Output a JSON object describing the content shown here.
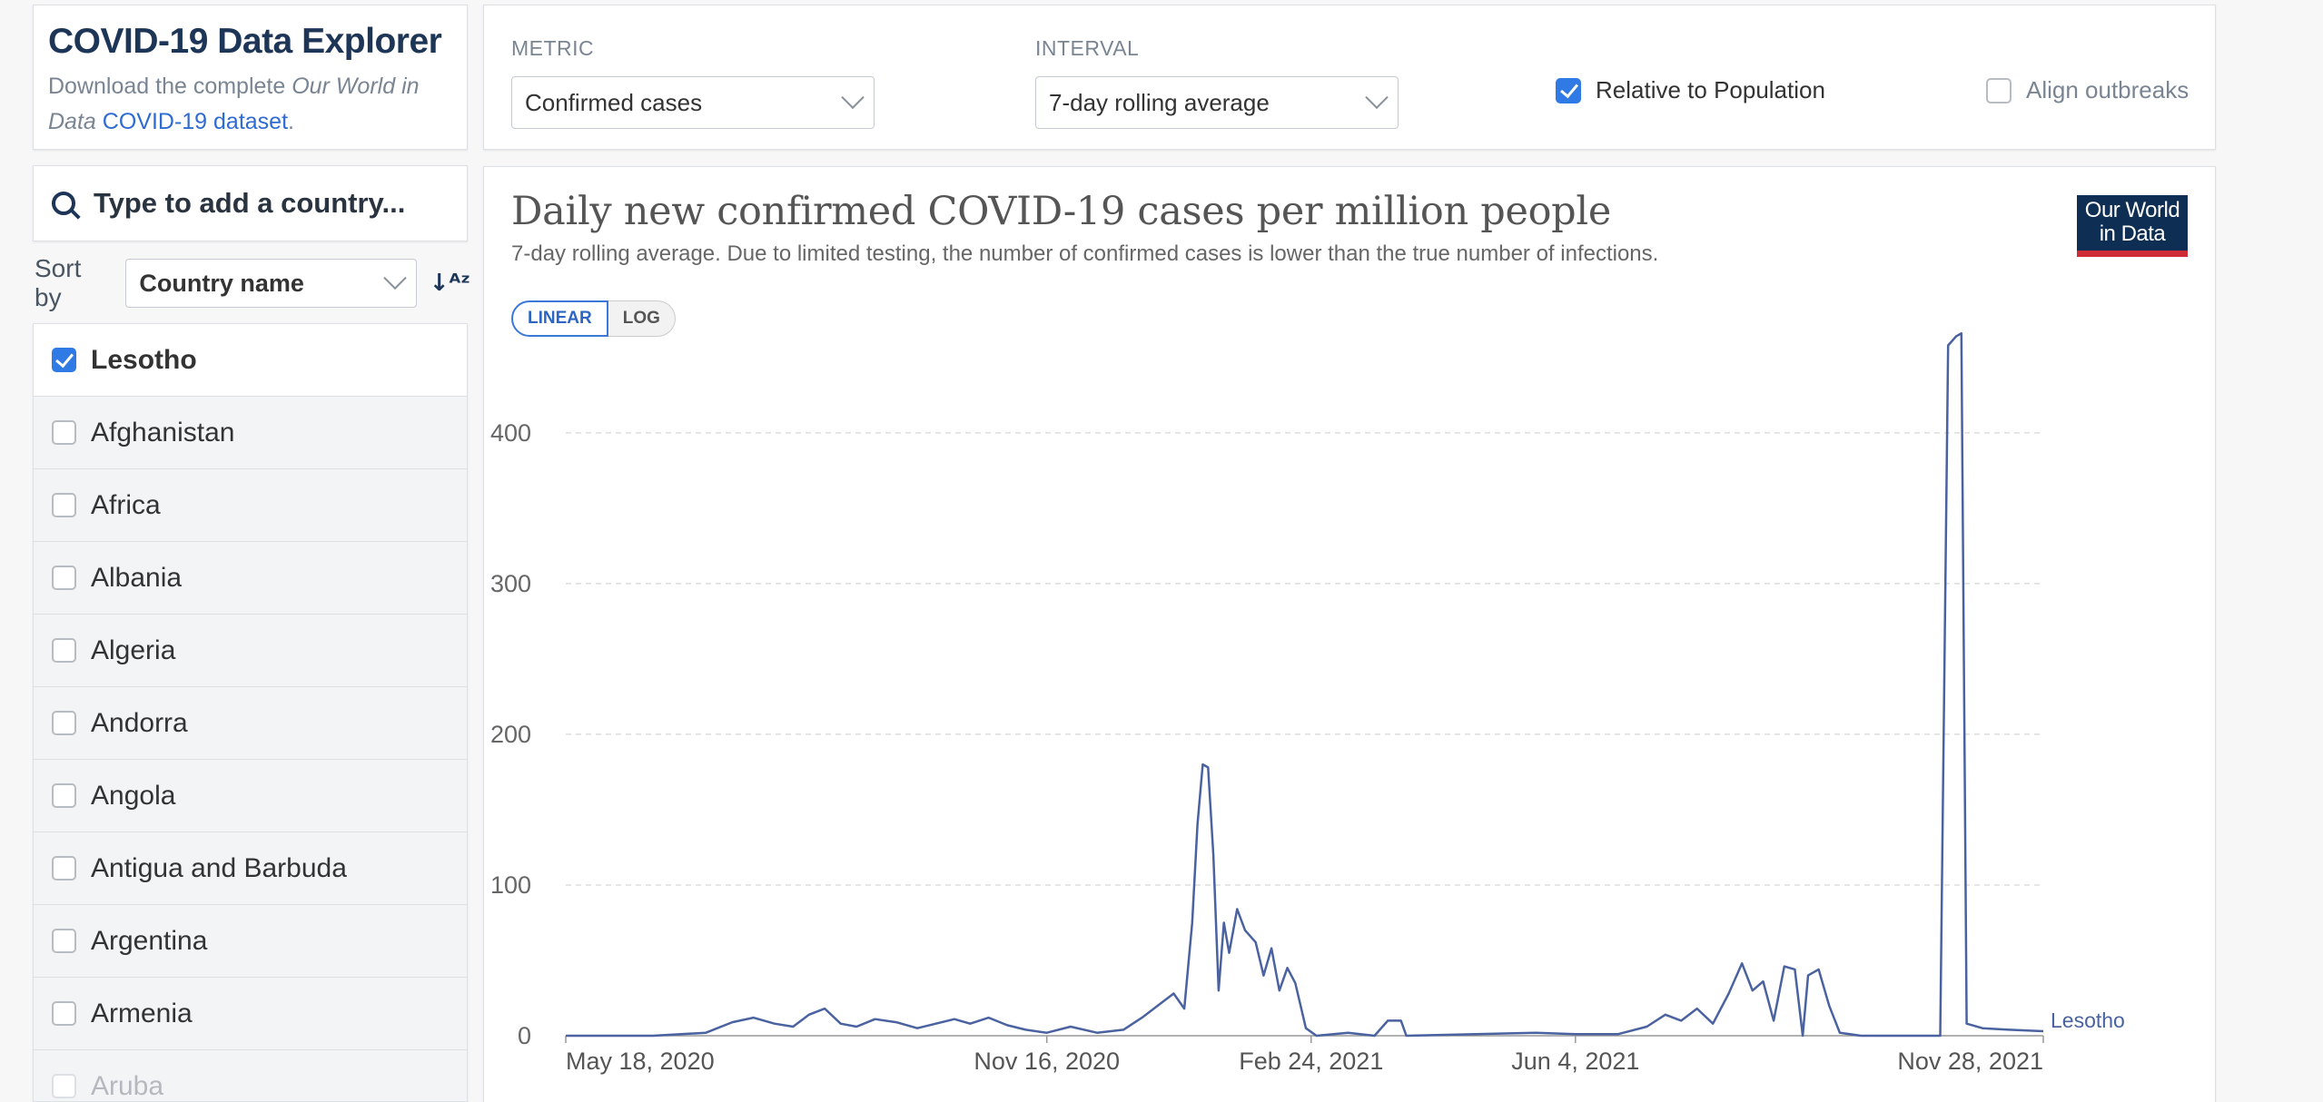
{
  "header": {
    "title": "COVID-19 Data Explorer",
    "download_prefix": "Download the complete ",
    "download_italic": "Our World in Data",
    "download_link": "COVID-19 dataset",
    "download_suffix": "."
  },
  "controls": {
    "metric_label": "METRIC",
    "metric_value": "Confirmed cases",
    "interval_label": "INTERVAL",
    "interval_value": "7-day rolling average",
    "relative_label": "Relative to Population",
    "relative_checked": true,
    "align_label": "Align outbreaks",
    "align_checked": false
  },
  "search": {
    "placeholder": "Type to add a country..."
  },
  "sort": {
    "label": "Sort by",
    "value": "Country name"
  },
  "countries": [
    {
      "name": "Lesotho",
      "checked": true
    },
    {
      "name": "Afghanistan",
      "checked": false
    },
    {
      "name": "Africa",
      "checked": false
    },
    {
      "name": "Albania",
      "checked": false
    },
    {
      "name": "Algeria",
      "checked": false
    },
    {
      "name": "Andorra",
      "checked": false
    },
    {
      "name": "Angola",
      "checked": false
    },
    {
      "name": "Antigua and Barbuda",
      "checked": false
    },
    {
      "name": "Argentina",
      "checked": false
    },
    {
      "name": "Armenia",
      "checked": false
    },
    {
      "name": "Aruba",
      "checked": false
    }
  ],
  "chart": {
    "title": "Daily new confirmed COVID-19 cases per million people",
    "subtitle": "7-day rolling average. Due to limited testing, the number of confirmed cases is lower than the true number of infections.",
    "scale_linear": "LINEAR",
    "scale_log": "LOG",
    "logo_line1": "Our World",
    "logo_line2": "in Data",
    "line_color": "#4a62a0"
  },
  "chart_data": {
    "type": "line",
    "title": "Daily new confirmed COVID-19 cases per million people",
    "subtitle": "7-day rolling average. Due to limited testing, the number of confirmed cases is lower than the true number of infections.",
    "x_start": "2020-05-18",
    "x_end": "2021-11-28",
    "xticks": [
      "May 18, 2020",
      "Nov 16, 2020",
      "Feb 24, 2021",
      "Jun 4, 2021",
      "Nov 28, 2021"
    ],
    "xtick_dates": [
      "2020-05-18",
      "2020-11-16",
      "2021-02-24",
      "2021-06-04",
      "2021-11-28"
    ],
    "yticks": [
      0,
      100,
      200,
      300,
      400
    ],
    "ylim": [
      0,
      480
    ],
    "grid": true,
    "series": [
      {
        "name": "Lesotho",
        "points": [
          [
            "2020-05-18",
            0
          ],
          [
            "2020-06-20",
            0
          ],
          [
            "2020-07-10",
            2
          ],
          [
            "2020-07-20",
            9
          ],
          [
            "2020-07-28",
            12
          ],
          [
            "2020-08-05",
            8
          ],
          [
            "2020-08-12",
            6
          ],
          [
            "2020-08-18",
            14
          ],
          [
            "2020-08-24",
            18
          ],
          [
            "2020-08-30",
            8
          ],
          [
            "2020-09-05",
            6
          ],
          [
            "2020-09-12",
            11
          ],
          [
            "2020-09-20",
            9
          ],
          [
            "2020-09-28",
            5
          ],
          [
            "2020-10-05",
            8
          ],
          [
            "2020-10-12",
            11
          ],
          [
            "2020-10-18",
            8
          ],
          [
            "2020-10-25",
            12
          ],
          [
            "2020-11-01",
            7
          ],
          [
            "2020-11-08",
            4
          ],
          [
            "2020-11-16",
            2
          ],
          [
            "2020-11-25",
            6
          ],
          [
            "2020-12-05",
            2
          ],
          [
            "2020-12-15",
            4
          ],
          [
            "2020-12-22",
            12
          ],
          [
            "2020-12-28",
            20
          ],
          [
            "2021-01-03",
            28
          ],
          [
            "2021-01-07",
            18
          ],
          [
            "2021-01-10",
            75
          ],
          [
            "2021-01-12",
            140
          ],
          [
            "2021-01-14",
            180
          ],
          [
            "2021-01-16",
            178
          ],
          [
            "2021-01-18",
            120
          ],
          [
            "2021-01-20",
            30
          ],
          [
            "2021-01-22",
            75
          ],
          [
            "2021-01-24",
            55
          ],
          [
            "2021-01-27",
            84
          ],
          [
            "2021-01-30",
            70
          ],
          [
            "2021-02-03",
            62
          ],
          [
            "2021-02-06",
            40
          ],
          [
            "2021-02-09",
            58
          ],
          [
            "2021-02-12",
            30
          ],
          [
            "2021-02-15",
            45
          ],
          [
            "2021-02-18",
            35
          ],
          [
            "2021-02-22",
            5
          ],
          [
            "2021-02-26",
            0
          ],
          [
            "2021-03-10",
            2
          ],
          [
            "2021-03-20",
            0
          ],
          [
            "2021-03-25",
            10
          ],
          [
            "2021-03-30",
            10
          ],
          [
            "2021-04-01",
            0
          ],
          [
            "2021-05-20",
            2
          ],
          [
            "2021-06-04",
            1
          ],
          [
            "2021-06-20",
            1
          ],
          [
            "2021-07-01",
            6
          ],
          [
            "2021-07-08",
            14
          ],
          [
            "2021-07-14",
            10
          ],
          [
            "2021-07-20",
            18
          ],
          [
            "2021-07-26",
            8
          ],
          [
            "2021-08-01",
            28
          ],
          [
            "2021-08-06",
            48
          ],
          [
            "2021-08-10",
            30
          ],
          [
            "2021-08-14",
            36
          ],
          [
            "2021-08-18",
            10
          ],
          [
            "2021-08-22",
            46
          ],
          [
            "2021-08-26",
            44
          ],
          [
            "2021-08-29",
            0
          ],
          [
            "2021-08-31",
            40
          ],
          [
            "2021-09-04",
            44
          ],
          [
            "2021-09-08",
            20
          ],
          [
            "2021-09-12",
            2
          ],
          [
            "2021-09-20",
            0
          ],
          [
            "2021-10-20",
            0
          ],
          [
            "2021-10-23",
            458
          ],
          [
            "2021-10-26",
            464
          ],
          [
            "2021-10-28",
            466
          ],
          [
            "2021-10-30",
            8
          ],
          [
            "2021-11-05",
            5
          ],
          [
            "2021-11-15",
            4
          ],
          [
            "2021-11-28",
            3
          ]
        ]
      }
    ]
  }
}
